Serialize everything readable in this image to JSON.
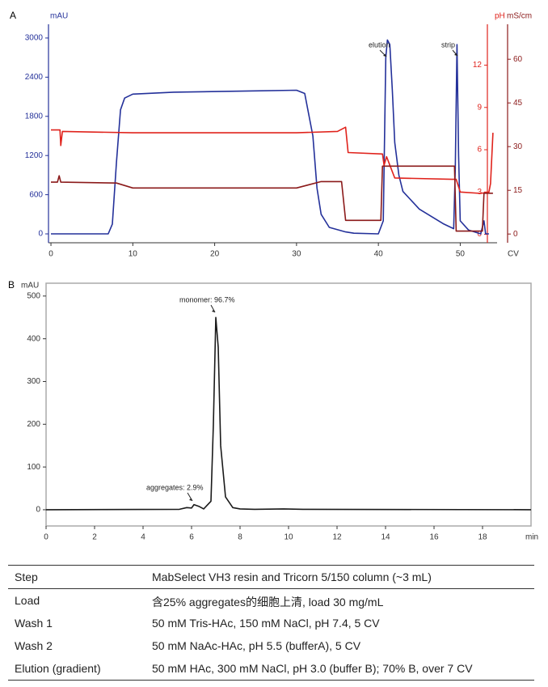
{
  "chart_data": [
    {
      "type": "line",
      "panel_label": "A",
      "y_label": "mAU",
      "y2_label": "pH",
      "y3_label": "mS/cm",
      "x_label": "CV",
      "xlim": [
        -0.3,
        54.5
      ],
      "xticks": [
        0,
        10,
        20,
        30,
        40,
        50
      ],
      "ylim": [
        -136,
        3210
      ],
      "yticks": [
        0,
        600,
        1200,
        1800,
        2400,
        3000
      ],
      "y2lim": [
        -0.6,
        14.9
      ],
      "y2ticks": [
        0,
        3,
        6,
        9,
        12
      ],
      "y3lim": [
        -3,
        72
      ],
      "y3ticks": [
        0,
        15,
        30,
        45,
        60
      ],
      "frame": false,
      "annotations": [
        "elution",
        "strip"
      ],
      "series": [
        {
          "axis": "y",
          "color": "#24319a",
          "x": [
            0,
            7,
            7.5,
            8,
            8.5,
            9,
            10,
            15,
            25,
            30,
            31,
            32,
            32.5,
            33,
            34,
            36,
            37,
            40,
            40.6,
            40.9,
            41.1,
            41.4,
            41.7,
            42,
            42.5,
            43,
            45,
            48,
            49.2,
            49.4,
            49.6,
            49.8,
            50,
            51,
            52.5,
            52.9,
            53.1,
            53.5
          ],
          "values": [
            0,
            0,
            150,
            1100,
            1900,
            2080,
            2140,
            2170,
            2190,
            2200,
            2150,
            1500,
            700,
            300,
            100,
            30,
            10,
            0,
            200,
            2700,
            2970,
            2900,
            2200,
            1400,
            900,
            650,
            380,
            150,
            80,
            1000,
            2900,
            1200,
            200,
            60,
            0,
            200,
            0,
            0
          ]
        },
        {
          "axis": "y2",
          "color": "#e0231c",
          "x": [
            0,
            1.1,
            1.2,
            1.4,
            10,
            30,
            35,
            36,
            36.3,
            40.5,
            40.7,
            41,
            42,
            49,
            49.5,
            50,
            52.5,
            53.5,
            53.7,
            54
          ],
          "values": [
            7.4,
            7.4,
            6.3,
            7.3,
            7.2,
            7.2,
            7.3,
            7.6,
            5.8,
            5.7,
            4.9,
            5.5,
            4.0,
            3.9,
            3.9,
            3.0,
            2.9,
            3.0,
            3.6,
            7.2
          ]
        },
        {
          "axis": "y3",
          "color": "#8b1a1a",
          "x": [
            0,
            0.8,
            1,
            1.2,
            8,
            10,
            30,
            33,
            35.5,
            36,
            40.3,
            40.5,
            49.3,
            49.5,
            52.7,
            52.9,
            54
          ],
          "values": [
            17.8,
            17.8,
            20,
            17.8,
            17.5,
            15.8,
            15.8,
            18,
            18,
            4.7,
            4.7,
            23.3,
            23.3,
            1,
            1,
            14,
            14
          ]
        }
      ]
    },
    {
      "type": "line",
      "panel_label": "B",
      "y_label": "mAU",
      "x_label": "min",
      "xlim": [
        0,
        20
      ],
      "xticks": [
        0,
        2,
        4,
        6,
        8,
        10,
        12,
        14,
        16,
        18
      ],
      "ylim": [
        -38,
        530
      ],
      "yticks": [
        0,
        100,
        200,
        300,
        400,
        500
      ],
      "frame": true,
      "annotations": [
        "monomer: 96.7%",
        "aggregates: 2.9%"
      ],
      "series": [
        {
          "axis": "y",
          "color": "#1a1a1a",
          "x": [
            0,
            5.5,
            5.8,
            6.0,
            6.1,
            6.3,
            6.5,
            6.8,
            6.9,
            7.0,
            7.1,
            7.2,
            7.4,
            7.7,
            8,
            8.6,
            9.8,
            10.6,
            20
          ],
          "values": [
            0,
            1,
            5,
            4,
            12,
            8,
            2,
            20,
            200,
            450,
            380,
            150,
            30,
            5,
            2,
            1,
            2,
            1,
            0
          ]
        }
      ]
    }
  ],
  "table": {
    "header": [
      "Step",
      "MabSelect VH3 resin and Tricorn 5/150 column (~3 mL)"
    ],
    "rows": [
      [
        "Load",
        "含25% aggregates的细胞上清, load 30 mg/mL"
      ],
      [
        "Wash 1",
        "50 mM Tris-HAc, 150 mM NaCl, pH 7.4, 5 CV"
      ],
      [
        "Wash 2",
        "50 mM NaAc-HAc, pH 5.5 (bufferA), 5 CV"
      ],
      [
        "Elution (gradient)",
        "50 mM HAc, 300 mM NaCl, pH 3.0 (buffer B); 70% B, over 7 CV"
      ]
    ]
  }
}
